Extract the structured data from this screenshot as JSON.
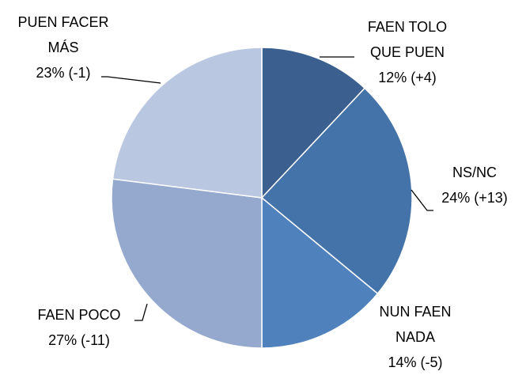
{
  "chart_data": {
    "type": "pie",
    "categories": [
      "FAEN TOLO QUE PUEN",
      "NS/NC",
      "NUN FAEN NADA",
      "FAEN POCO",
      "PUEN FACER MÁS"
    ],
    "values": [
      12,
      24,
      14,
      27,
      23
    ],
    "value_labels": [
      "12% (+4)",
      "24% (+13)",
      "14% (-5)",
      "27% (-11)",
      "23% (-1)"
    ],
    "colors": [
      "#3b6090",
      "#4473a9",
      "#4f81bd",
      "#95a9cf",
      "#bac7e1"
    ]
  }
}
